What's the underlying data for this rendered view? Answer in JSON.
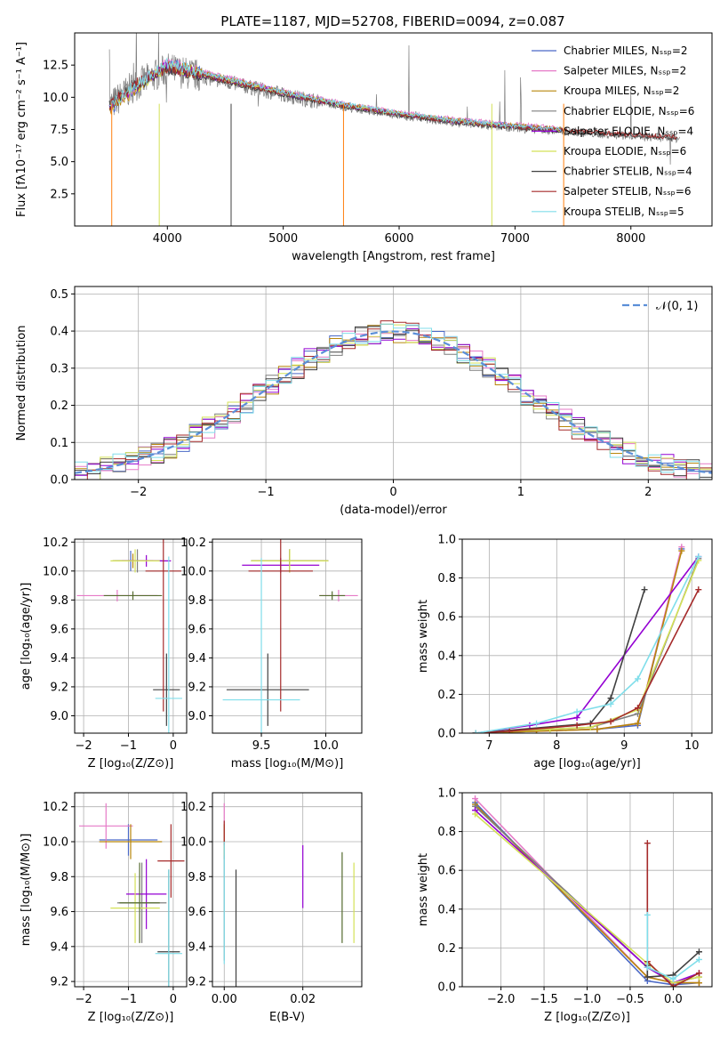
{
  "figure": {
    "title": "PLATE=1187, MJD=52708, FIBERID=0094, z=0.087"
  },
  "chart_data": [
    {
      "id": "spectrum",
      "type": "line",
      "title": "PLATE=1187, MJD=52708, FIBERID=0094, z=0.087",
      "xlabel": "wavelength [Angstrom, rest frame]",
      "ylabel": "Flux [fλ10⁻¹⁷ erg cm⁻² s⁻¹ A⁻¹]",
      "xlim": [
        3200,
        8700
      ],
      "ylim": [
        0,
        15
      ],
      "xticks": [
        4000,
        5000,
        6000,
        7000,
        8000
      ],
      "yticks": [
        2.5,
        5.0,
        7.5,
        10.0,
        12.5
      ],
      "grid": false,
      "legend_position": "top-right",
      "series": [
        {
          "name": "Chabrier MILES, Nₛₛₚ=2",
          "color": "#4b69c6",
          "x": [
            3500,
            3700,
            4000,
            4500,
            5000,
            5500,
            6000,
            6500,
            7000,
            7400
          ],
          "y": [
            9.0,
            10.5,
            12.6,
            11.5,
            10.4,
            9.5,
            8.7,
            8.2,
            7.8,
            7.5
          ]
        },
        {
          "name": "Salpeter MILES, Nₛₛₚ=2",
          "color": "#e67ac7",
          "x": [
            3500,
            3700,
            4000,
            4500,
            5000,
            5500,
            6000,
            6500,
            7000,
            7400
          ],
          "y": [
            9.1,
            10.6,
            12.7,
            11.6,
            10.5,
            9.6,
            8.8,
            8.3,
            7.9,
            7.6
          ]
        },
        {
          "name": "Kroupa MILES, Nₛₛₚ=2",
          "color": "#b8860b",
          "x": [
            3500,
            3700,
            4000,
            4500,
            5000,
            5500,
            6000,
            6500,
            7000,
            7400
          ],
          "y": [
            9.0,
            10.4,
            12.5,
            11.5,
            10.4,
            9.5,
            8.7,
            8.2,
            7.8,
            7.5
          ]
        },
        {
          "name": "Chabrier ELODIE, Nₛₛₚ=6",
          "color": "#7f7f7f",
          "x": [
            3500,
            3700,
            4000,
            4500,
            5000,
            5500,
            6000,
            6500,
            7000,
            7400
          ],
          "y": [
            9.5,
            11.0,
            12.3,
            11.2,
            10.2,
            9.3,
            8.6,
            8.1,
            7.7,
            7.4
          ]
        },
        {
          "name": "Salpeter ELODIE, Nₛₛₚ=4",
          "color": "#9400d3",
          "x": [
            3500,
            3700,
            4000,
            4500,
            5000,
            5500,
            6000,
            6500,
            7000,
            7400
          ],
          "y": [
            9.2,
            10.7,
            12.4,
            11.3,
            10.3,
            9.4,
            8.7,
            8.1,
            7.7,
            7.4
          ]
        },
        {
          "name": "Kroupa ELODIE, Nₛₛₚ=6",
          "color": "#d4e157",
          "x": [
            3500,
            3700,
            4000,
            4500,
            5000,
            5500,
            6000,
            6500,
            7000,
            7400
          ],
          "y": [
            9.2,
            10.6,
            12.4,
            11.3,
            10.3,
            9.4,
            8.7,
            8.1,
            7.7,
            7.4
          ]
        },
        {
          "name": "Chabrier STELIB, Nₛₛₚ=4",
          "color": "#404040",
          "x": [
            3500,
            3700,
            4000,
            4500,
            5000,
            5500,
            6000,
            6500,
            7000,
            7500,
            8000,
            8400
          ],
          "y": [
            9.3,
            10.8,
            12.2,
            11.2,
            10.2,
            9.3,
            8.6,
            8.0,
            7.6,
            7.3,
            7.0,
            6.8
          ]
        },
        {
          "name": "Salpeter STELIB, Nₛₛₚ=6",
          "color": "#a52a2a",
          "x": [
            3500,
            3700,
            4000,
            4500,
            5000,
            5500,
            6000,
            6500,
            7000,
            7500,
            8000,
            8400
          ],
          "y": [
            9.4,
            10.9,
            12.3,
            11.3,
            10.3,
            9.4,
            8.7,
            8.1,
            7.7,
            7.4,
            7.1,
            6.9
          ]
        },
        {
          "name": "Kroupa STELIB, Nₛₛₚ=5",
          "color": "#80deea",
          "x": [
            3500,
            3700,
            4000,
            4500,
            5000,
            5500,
            6000,
            6500,
            7000,
            7400
          ],
          "y": [
            9.3,
            10.8,
            12.6,
            11.5,
            10.4,
            9.5,
            8.8,
            8.2,
            7.8,
            7.5
          ]
        }
      ]
    },
    {
      "id": "residuals",
      "type": "line",
      "xlabel": "(data-model)/error",
      "ylabel": "Normed distribution",
      "xlim": [
        -2.5,
        2.5
      ],
      "ylim": [
        0,
        0.52
      ],
      "xticks": [
        -2,
        -1,
        0,
        1,
        2
      ],
      "yticks": [
        0.0,
        0.1,
        0.2,
        0.3,
        0.4,
        0.5
      ],
      "grid": true,
      "legend_position": "top-right",
      "legend": [
        "𝒩(0, 1)"
      ],
      "gaussian": {
        "mean": 0,
        "sigma": 1,
        "color": "#5b8fd8"
      },
      "histogram": {
        "bin_width": 0.1,
        "colors": [
          "#4b69c6",
          "#e67ac7",
          "#b8860b",
          "#7f7f7f",
          "#9400d3",
          "#d4e157",
          "#404040",
          "#a52a2a",
          "#80deea"
        ]
      }
    },
    {
      "id": "age-vs-Z",
      "type": "scatter",
      "xlabel": "Z [log₁₀(Z/Z⊙)]",
      "ylabel": "age  [log₁₀(age/yr)]",
      "xlim": [
        -2.2,
        0.3
      ],
      "ylim": [
        8.88,
        10.22
      ],
      "xticks": [
        -2,
        -1,
        0
      ],
      "yticks": [
        9.0,
        9.2,
        9.4,
        9.6,
        9.8,
        10.0,
        10.2
      ],
      "grid": true,
      "points": [
        {
          "x": -0.95,
          "y": 10.07,
          "xerr": 0.35,
          "yerr": 0.07,
          "color": "#4b69c6"
        },
        {
          "x": -1.25,
          "y": 9.83,
          "xerr": 0.9,
          "yerr": 0.04,
          "color": "#e67ac7"
        },
        {
          "x": -0.9,
          "y": 10.07,
          "xerr": 0.45,
          "yerr": 0.05,
          "color": "#b8860b"
        },
        {
          "x": -0.8,
          "y": 10.07,
          "xerr": 0.55,
          "yerr": 0.08,
          "color": "#7f7f7f"
        },
        {
          "x": -0.6,
          "y": 10.07,
          "xerr": 0.55,
          "yerr": 0.04,
          "color": "#9400d3"
        },
        {
          "x": -0.85,
          "y": 10.07,
          "xerr": 0.55,
          "yerr": 0.08,
          "color": "#d4e157"
        },
        {
          "x": -0.15,
          "y": 9.18,
          "xerr": 0.3,
          "yerr": 0.25,
          "color": "#404040"
        },
        {
          "x": -0.22,
          "y": 10.0,
          "xerr": 0.4,
          "yerr": 0.97,
          "color": "#a52a2a"
        },
        {
          "x": -0.1,
          "y": 9.12,
          "xerr": 0.3,
          "yerr": 0.98,
          "color": "#80deea"
        },
        {
          "x": -0.9,
          "y": 9.83,
          "xerr": 0.65,
          "yerr": 0.03,
          "color": "#556b2f"
        }
      ]
    },
    {
      "id": "age-vs-mass",
      "type": "scatter",
      "xlabel": "mass [log₁₀(M/M⊙)]",
      "ylabel": "",
      "xlim": [
        9.12,
        10.28
      ],
      "ylim": [
        8.88,
        10.22
      ],
      "xticks": [
        9.5,
        10.0
      ],
      "yticks": [
        9.0,
        9.2,
        9.4,
        9.6,
        9.8,
        10.0,
        10.2
      ],
      "grid": true,
      "points": [
        {
          "x": 9.72,
          "y": 10.07,
          "xerr": 0.3,
          "yerr": 0.08,
          "color": "#4b69c6"
        },
        {
          "x": 10.1,
          "y": 9.83,
          "xerr": 0.15,
          "yerr": 0.04,
          "color": "#e67ac7"
        },
        {
          "x": 9.72,
          "y": 10.07,
          "xerr": 0.3,
          "yerr": 0.08,
          "color": "#b8860b"
        },
        {
          "x": 9.72,
          "y": 10.07,
          "xerr": 0.3,
          "yerr": 0.08,
          "color": "#7f7f7f"
        },
        {
          "x": 9.65,
          "y": 10.04,
          "xerr": 0.3,
          "yerr": 0.05,
          "color": "#9400d3"
        },
        {
          "x": 9.72,
          "y": 10.07,
          "xerr": 0.3,
          "yerr": 0.08,
          "color": "#d4e157"
        },
        {
          "x": 9.55,
          "y": 9.18,
          "xerr": 0.32,
          "yerr": 0.25,
          "color": "#404040"
        },
        {
          "x": 9.65,
          "y": 10.0,
          "xerr": 0.25,
          "yerr": 0.97,
          "color": "#a52a2a"
        },
        {
          "x": 9.5,
          "y": 9.11,
          "xerr": 0.3,
          "yerr": 0.98,
          "color": "#80deea"
        },
        {
          "x": 10.05,
          "y": 9.83,
          "xerr": 0.1,
          "yerr": 0.03,
          "color": "#556b2f"
        }
      ]
    },
    {
      "id": "massweight-vs-age",
      "type": "line",
      "xlabel": "age  [log₁₀(age/yr)]",
      "ylabel": "mass weight",
      "xlim": [
        6.6,
        10.3
      ],
      "ylim": [
        0,
        1.0
      ],
      "xticks": [
        7,
        8,
        9,
        10
      ],
      "yticks": [
        0.0,
        0.2,
        0.4,
        0.6,
        0.8,
        1.0
      ],
      "grid": true,
      "series": [
        {
          "color": "#4b69c6",
          "x": [
            6.8,
            7.7,
            8.6,
            9.2,
            9.85
          ],
          "y": [
            0.0,
            0.01,
            0.02,
            0.04,
            0.95
          ]
        },
        {
          "color": "#e67ac7",
          "x": [
            6.8,
            7.7,
            8.6,
            9.2,
            9.85
          ],
          "y": [
            0.0,
            0.01,
            0.02,
            0.05,
            0.96
          ]
        },
        {
          "color": "#b8860b",
          "x": [
            6.8,
            7.7,
            8.6,
            9.2,
            9.85
          ],
          "y": [
            0.0,
            0.01,
            0.02,
            0.05,
            0.94
          ]
        },
        {
          "color": "#7f7f7f",
          "x": [
            6.8,
            7.3,
            7.9,
            8.5,
            9.2,
            10.1
          ],
          "y": [
            0.0,
            0.01,
            0.02,
            0.03,
            0.1,
            0.9
          ]
        },
        {
          "color": "#9400d3",
          "x": [
            6.8,
            7.6,
            8.3,
            10.1
          ],
          "y": [
            0.0,
            0.04,
            0.08,
            0.91
          ]
        },
        {
          "color": "#d4e157",
          "x": [
            6.8,
            7.3,
            7.9,
            8.5,
            9.2,
            10.1
          ],
          "y": [
            0.0,
            0.01,
            0.02,
            0.03,
            0.12,
            0.89
          ]
        },
        {
          "color": "#404040",
          "x": [
            6.8,
            8.5,
            8.8,
            9.3
          ],
          "y": [
            0.0,
            0.05,
            0.18,
            0.74
          ]
        },
        {
          "color": "#a52a2a",
          "x": [
            6.8,
            7.3,
            8.3,
            8.8,
            9.2,
            10.1
          ],
          "y": [
            0.0,
            0.01,
            0.04,
            0.06,
            0.13,
            0.74
          ]
        },
        {
          "color": "#80deea",
          "x": [
            6.8,
            7.7,
            8.3,
            8.8,
            9.2,
            10.1
          ],
          "y": [
            0.0,
            0.05,
            0.11,
            0.15,
            0.28,
            0.91
          ]
        }
      ]
    },
    {
      "id": "mass-vs-Z",
      "type": "scatter",
      "xlabel": "Z [log₁₀(Z/Z⊙)]",
      "ylabel": "mass [log₁₀(M/M⊙)]",
      "xlim": [
        -2.2,
        0.3
      ],
      "ylim": [
        9.17,
        10.28
      ],
      "xticks": [
        -2,
        -1,
        0
      ],
      "yticks": [
        9.2,
        9.4,
        9.6,
        9.8,
        10.0,
        10.2
      ],
      "grid": true,
      "points": [
        {
          "x": -1.0,
          "y": 10.01,
          "xerr": 0.65,
          "yerr": 0.09,
          "color": "#4b69c6"
        },
        {
          "x": -1.5,
          "y": 10.09,
          "xerr": 0.6,
          "yerr": 0.13,
          "color": "#e67ac7"
        },
        {
          "x": -0.95,
          "y": 10.0,
          "xerr": 0.7,
          "yerr": 0.1,
          "color": "#b8860b"
        },
        {
          "x": -0.7,
          "y": 9.65,
          "xerr": 0.55,
          "yerr": 0.23,
          "color": "#7f7f7f"
        },
        {
          "x": -0.6,
          "y": 9.7,
          "xerr": 0.45,
          "yerr": 0.2,
          "color": "#9400d3"
        },
        {
          "x": -0.85,
          "y": 9.62,
          "xerr": 0.55,
          "yerr": 0.2,
          "color": "#d4e157"
        },
        {
          "x": -0.1,
          "y": 9.37,
          "xerr": 0.25,
          "yerr": 0.47,
          "color": "#404040"
        },
        {
          "x": -0.05,
          "y": 9.89,
          "xerr": 0.3,
          "yerr": 0.21,
          "color": "#a52a2a"
        },
        {
          "x": -0.1,
          "y": 9.36,
          "xerr": 0.3,
          "yerr": 0.48,
          "color": "#80deea"
        },
        {
          "x": -0.75,
          "y": 9.65,
          "xerr": 0.45,
          "yerr": 0.23,
          "color": "#556b2f"
        }
      ]
    },
    {
      "id": "mass-vs-ebv",
      "type": "scatter",
      "xlabel": "E(B-V)",
      "ylabel": "",
      "xlim": [
        -0.003,
        0.035
      ],
      "ylim": [
        9.17,
        10.28
      ],
      "xticks": [
        0.0,
        0.02
      ],
      "yticks": [
        9.2,
        9.4,
        9.6,
        9.8,
        10.0,
        10.2
      ],
      "grid": true,
      "points": [
        {
          "x": 0.0,
          "y": 10.0,
          "xerr": 0,
          "yerr": 0.1,
          "color": "#4b69c6"
        },
        {
          "x": 0.0,
          "y": 10.1,
          "xerr": 0,
          "yerr": 0.12,
          "color": "#e67ac7"
        },
        {
          "x": 0.0,
          "y": 10.0,
          "xerr": 0,
          "yerr": 0.1,
          "color": "#b8860b"
        },
        {
          "x": 0.0,
          "y": 9.62,
          "xerr": 0,
          "yerr": 0.3,
          "color": "#7f7f7f"
        },
        {
          "x": 0.02,
          "y": 9.8,
          "xerr": 0,
          "yerr": 0.18,
          "color": "#9400d3"
        },
        {
          "x": 0.033,
          "y": 9.65,
          "xerr": 0,
          "yerr": 0.23,
          "color": "#d4e157"
        },
        {
          "x": 0.003,
          "y": 9.42,
          "xerr": 0,
          "yerr": 0.42,
          "color": "#404040"
        },
        {
          "x": 0.0,
          "y": 10.05,
          "xerr": 0,
          "yerr": 0.07,
          "color": "#a52a2a"
        },
        {
          "x": 0.0,
          "y": 9.65,
          "xerr": 0,
          "yerr": 0.35,
          "color": "#80deea"
        },
        {
          "x": 0.03,
          "y": 9.68,
          "xerr": 0,
          "yerr": 0.26,
          "color": "#556b2f"
        }
      ]
    },
    {
      "id": "massweight-vs-Z",
      "type": "line",
      "xlabel": "Z [log₁₀(Z/Z⊙)]",
      "ylabel": "mass weight",
      "xlim": [
        -2.45,
        0.45
      ],
      "ylim": [
        0,
        1.0
      ],
      "xticks": [
        -2.0,
        -1.5,
        -1.0,
        -0.5,
        0.0
      ],
      "yticks": [
        0.0,
        0.2,
        0.4,
        0.6,
        0.8,
        1.0
      ],
      "grid": true,
      "series": [
        {
          "color": "#4b69c6",
          "x": [
            -2.3,
            -0.3,
            0.0,
            0.3
          ],
          "y": [
            0.95,
            0.03,
            0.01,
            0.02
          ]
        },
        {
          "color": "#e67ac7",
          "x": [
            -2.3,
            -0.3,
            0.0,
            0.3
          ],
          "y": [
            0.97,
            0.05,
            0.02,
            0.02
          ]
        },
        {
          "color": "#b8860b",
          "x": [
            -2.3,
            -0.3,
            0.0,
            0.3
          ],
          "y": [
            0.94,
            0.05,
            0.02,
            0.02
          ]
        },
        {
          "color": "#7f7f7f",
          "x": [
            -2.3,
            -0.3,
            0.0,
            0.3
          ],
          "y": [
            0.93,
            0.1,
            0.02,
            0.05
          ]
        },
        {
          "color": "#9400d3",
          "x": [
            -2.3,
            -0.3,
            0.0,
            0.3
          ],
          "y": [
            0.91,
            0.1,
            0.02,
            0.07
          ]
        },
        {
          "color": "#d4e157",
          "x": [
            -2.3,
            -0.3,
            0.0,
            0.3
          ],
          "y": [
            0.89,
            0.12,
            0.02,
            0.05
          ]
        },
        {
          "color": "#404040",
          "x": [
            -0.3,
            -0.3,
            0.0,
            0.3
          ],
          "y": [
            0.11,
            0.05,
            0.06,
            0.18
          ]
        },
        {
          "color": "#a52a2a",
          "x": [
            -0.3,
            -0.3,
            0.0,
            0.3
          ],
          "y": [
            0.74,
            0.13,
            0.0,
            0.07
          ]
        },
        {
          "color": "#80deea",
          "x": [
            -0.3,
            -0.3,
            0.0,
            0.3
          ],
          "y": [
            0.37,
            0.1,
            0.04,
            0.14
          ]
        }
      ]
    }
  ]
}
